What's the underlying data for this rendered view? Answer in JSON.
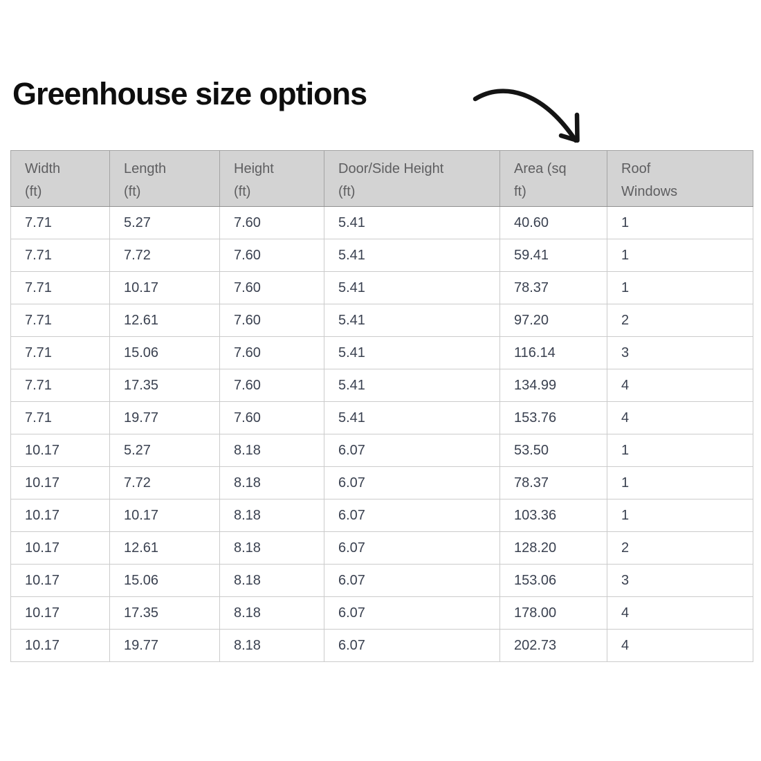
{
  "page": {
    "title": "Greenhouse size options"
  },
  "annotation": {
    "arrow_icon": "hand-drawn-curved-arrow-pointing-from-title-to-table"
  },
  "colors": {
    "title_text": "#0e0e0e",
    "arrow": "#141414",
    "header_bg": "#d3d3d3",
    "header_text": "#5e5e60",
    "header_border": "#a3a3a3",
    "body_text": "#3a4150",
    "body_border": "#cbcbcb",
    "row_bg": "#ffffff"
  },
  "table": {
    "columns": [
      {
        "line1": "Width",
        "line2": "(ft)"
      },
      {
        "line1": "Length",
        "line2": "(ft)"
      },
      {
        "line1": "Height",
        "line2": "(ft)"
      },
      {
        "line1": "Door/Side Height",
        "line2": "(ft)"
      },
      {
        "line1": "Area (sq",
        "line2": "ft)"
      },
      {
        "line1": "Roof",
        "line2": "Windows"
      }
    ],
    "rows": [
      [
        "7.71",
        "5.27",
        "7.60",
        "5.41",
        "40.60",
        "1"
      ],
      [
        "7.71",
        "7.72",
        "7.60",
        "5.41",
        "59.41",
        "1"
      ],
      [
        "7.71",
        "10.17",
        "7.60",
        "5.41",
        "78.37",
        "1"
      ],
      [
        "7.71",
        "12.61",
        "7.60",
        "5.41",
        "97.20",
        "2"
      ],
      [
        "7.71",
        "15.06",
        "7.60",
        "5.41",
        "116.14",
        "3"
      ],
      [
        "7.71",
        "17.35",
        "7.60",
        "5.41",
        "134.99",
        "4"
      ],
      [
        "7.71",
        "19.77",
        "7.60",
        "5.41",
        "153.76",
        "4"
      ],
      [
        "10.17",
        "5.27",
        "8.18",
        "6.07",
        "53.50",
        "1"
      ],
      [
        "10.17",
        "7.72",
        "8.18",
        "6.07",
        "78.37",
        "1"
      ],
      [
        "10.17",
        "10.17",
        "8.18",
        "6.07",
        "103.36",
        "1"
      ],
      [
        "10.17",
        "12.61",
        "8.18",
        "6.07",
        "128.20",
        "2"
      ],
      [
        "10.17",
        "15.06",
        "8.18",
        "6.07",
        "153.06",
        "3"
      ],
      [
        "10.17",
        "17.35",
        "8.18",
        "6.07",
        "178.00",
        "4"
      ],
      [
        "10.17",
        "19.77",
        "8.18",
        "6.07",
        "202.73",
        "4"
      ]
    ]
  }
}
